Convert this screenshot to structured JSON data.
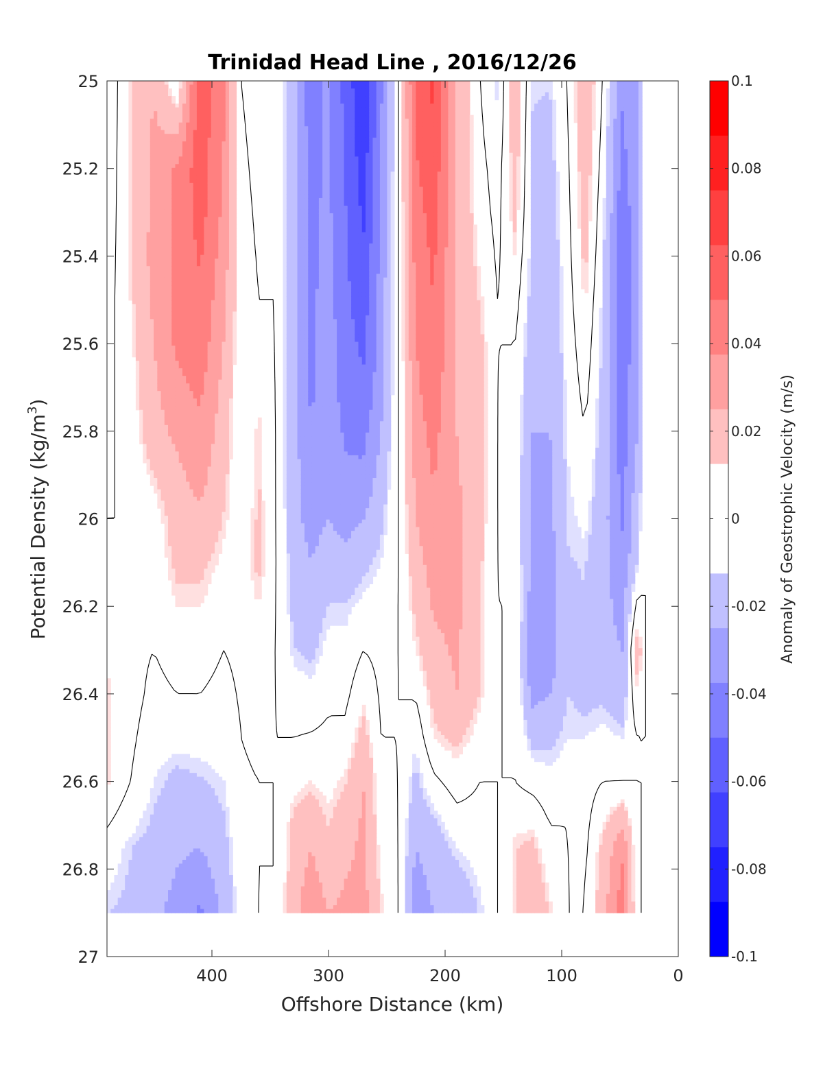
{
  "chart_data": {
    "type": "contour",
    "title": "Trinidad Head Line , 2016/12/26",
    "xlabel": "Offshore Distance (km)",
    "ylabel_main": "Potential Density (kg/m",
    "ylabel_sup": "3",
    "ylabel_close": ")",
    "xlim": [
      490,
      0
    ],
    "ylim": [
      25,
      27
    ],
    "x_reversed": true,
    "y_reversed": true,
    "x_ticks": [
      400,
      300,
      200,
      100,
      0
    ],
    "y_ticks": [
      25,
      25.2,
      25.4,
      25.6,
      25.8,
      26,
      26.2,
      26.4,
      26.6,
      26.8,
      27
    ],
    "y_tick_labels": [
      "25",
      "25.2",
      "25.4",
      "25.6",
      "25.8",
      "26",
      "26.2",
      "26.4",
      "26.6",
      "26.8",
      "27"
    ],
    "colorbar": {
      "label": "Anomaly of Geostrophic Velocity (m/s)",
      "range": [
        -0.1,
        0.1
      ],
      "ticks": [
        0.1,
        0.08,
        0.06,
        0.04,
        0.02,
        0,
        -0.02,
        -0.04,
        -0.06,
        -0.08,
        -0.1
      ],
      "tick_labels": [
        "0.1",
        "0.08",
        "0.06",
        "0.04",
        "0.02",
        "0",
        "-0.02",
        "-0.04",
        "-0.06",
        "-0.08",
        "-0.1"
      ],
      "levels": 16,
      "colors": [
        "#0000ff",
        "#2020ff",
        "#4040ff",
        "#6060ff",
        "#8080ff",
        "#a0a0ff",
        "#c0c0ff",
        "#e0e0ff",
        "#ffffff",
        "#ffe0e0",
        "#ffc0c0",
        "#ffa0a0",
        "#ff8080",
        "#ff6060",
        "#ff4040",
        "#ff2020",
        "#ff0000"
      ]
    },
    "data_max_density": 26.9,
    "columns": [
      {
        "x": 490,
        "values": [
          [
            25.0,
            -0.01
          ],
          [
            25.5,
            -0.005
          ],
          [
            26.0,
            0.0
          ],
          [
            26.3,
            0.01
          ],
          [
            26.6,
            0.012
          ],
          [
            26.75,
            -0.005
          ],
          [
            26.9,
            -0.012
          ]
        ]
      },
      {
        "x": 470,
        "values": [
          [
            25.0,
            0.012
          ],
          [
            25.5,
            0.01
          ],
          [
            26.0,
            0.0
          ],
          [
            26.4,
            0.005
          ],
          [
            26.6,
            0.0
          ],
          [
            26.75,
            -0.012
          ],
          [
            26.9,
            -0.015
          ]
        ]
      },
      {
        "x": 450,
        "values": [
          [
            25.0,
            0.025
          ],
          [
            25.4,
            0.03
          ],
          [
            25.8,
            0.02
          ],
          [
            26.0,
            0.005
          ],
          [
            26.3,
            0.0
          ],
          [
            26.6,
            -0.01
          ],
          [
            26.9,
            -0.022
          ]
        ]
      },
      {
        "x": 430,
        "values": [
          [
            25.0,
            0.0
          ],
          [
            25.2,
            0.04
          ],
          [
            25.6,
            0.04
          ],
          [
            25.9,
            0.022
          ],
          [
            26.1,
            0.015
          ],
          [
            26.4,
            0.0
          ],
          [
            26.6,
            -0.015
          ],
          [
            26.9,
            -0.03
          ]
        ]
      },
      {
        "x": 410,
        "values": [
          [
            25.0,
            0.06
          ],
          [
            25.3,
            0.055
          ],
          [
            25.6,
            0.045
          ],
          [
            25.9,
            0.03
          ],
          [
            26.1,
            0.015
          ],
          [
            26.4,
            0.0
          ],
          [
            26.7,
            -0.02
          ],
          [
            26.9,
            -0.04
          ]
        ]
      },
      {
        "x": 390,
        "values": [
          [
            25.0,
            0.04
          ],
          [
            25.3,
            0.035
          ],
          [
            25.6,
            0.025
          ],
          [
            26.0,
            0.012
          ],
          [
            26.3,
            0.0
          ],
          [
            26.6,
            -0.01
          ],
          [
            26.9,
            -0.022
          ]
        ]
      },
      {
        "x": 375,
        "values": [
          [
            25.0,
            0.0
          ],
          [
            25.4,
            0.005
          ],
          [
            25.8,
            0.0
          ],
          [
            26.1,
            0.005
          ],
          [
            26.5,
            0.0
          ],
          [
            26.9,
            -0.005
          ]
        ]
      },
      {
        "x": 360,
        "values": [
          [
            25.0,
            -0.005
          ],
          [
            25.5,
            0.0
          ],
          [
            25.8,
            0.012
          ],
          [
            26.1,
            0.015
          ],
          [
            26.3,
            0.005
          ],
          [
            26.6,
            0.0
          ],
          [
            26.9,
            0.0
          ]
        ]
      },
      {
        "x": 345,
        "values": [
          [
            25.0,
            0.0
          ],
          [
            25.5,
            0.0
          ],
          [
            26.0,
            0.0
          ],
          [
            26.5,
            0.0
          ],
          [
            26.8,
            0.0
          ],
          [
            26.9,
            0.005
          ]
        ]
      },
      {
        "x": 330,
        "values": [
          [
            25.0,
            -0.022
          ],
          [
            25.5,
            -0.022
          ],
          [
            26.0,
            -0.02
          ],
          [
            26.3,
            -0.012
          ],
          [
            26.5,
            0.0
          ],
          [
            26.7,
            0.015
          ],
          [
            26.9,
            0.02
          ]
        ]
      },
      {
        "x": 315,
        "values": [
          [
            25.0,
            -0.045
          ],
          [
            25.3,
            -0.04
          ],
          [
            25.7,
            -0.04
          ],
          [
            26.0,
            -0.03
          ],
          [
            26.3,
            -0.015
          ],
          [
            26.55,
            0.005
          ],
          [
            26.75,
            0.025
          ],
          [
            26.9,
            0.035
          ]
        ]
      },
      {
        "x": 300,
        "values": [
          [
            25.0,
            -0.035
          ],
          [
            25.3,
            -0.035
          ],
          [
            25.7,
            -0.03
          ],
          [
            26.0,
            -0.025
          ],
          [
            26.2,
            -0.012
          ],
          [
            26.45,
            0.0
          ],
          [
            26.7,
            0.012
          ],
          [
            26.9,
            0.025
          ]
        ]
      },
      {
        "x": 285,
        "values": [
          [
            25.0,
            -0.055
          ],
          [
            25.3,
            -0.05
          ],
          [
            25.7,
            -0.045
          ],
          [
            26.0,
            -0.03
          ],
          [
            26.2,
            -0.012
          ],
          [
            26.45,
            0.0
          ],
          [
            26.7,
            0.02
          ],
          [
            26.9,
            0.028
          ]
        ]
      },
      {
        "x": 270,
        "values": [
          [
            25.0,
            -0.075
          ],
          [
            25.3,
            -0.065
          ],
          [
            25.7,
            -0.048
          ],
          [
            25.9,
            -0.035
          ],
          [
            26.1,
            -0.015
          ],
          [
            26.3,
            0.0
          ],
          [
            26.6,
            0.025
          ],
          [
            26.9,
            0.03
          ]
        ]
      },
      {
        "x": 255,
        "values": [
          [
            25.0,
            -0.04
          ],
          [
            25.3,
            -0.035
          ],
          [
            25.7,
            -0.03
          ],
          [
            26.0,
            -0.015
          ],
          [
            26.2,
            -0.005
          ],
          [
            26.5,
            0.0
          ],
          [
            26.7,
            0.005
          ],
          [
            26.9,
            0.012
          ]
        ]
      },
      {
        "x": 240,
        "values": [
          [
            25.0,
            0.0
          ],
          [
            25.5,
            0.0
          ],
          [
            26.0,
            0.0
          ],
          [
            26.5,
            0.0
          ],
          [
            26.9,
            0.0
          ]
        ]
      },
      {
        "x": 225,
        "values": [
          [
            25.0,
            0.055
          ],
          [
            25.3,
            0.045
          ],
          [
            25.7,
            0.035
          ],
          [
            26.0,
            0.025
          ],
          [
            26.3,
            0.01
          ],
          [
            26.55,
            -0.012
          ],
          [
            26.75,
            -0.025
          ],
          [
            26.9,
            -0.035
          ]
        ]
      },
      {
        "x": 210,
        "values": [
          [
            25.0,
            0.065
          ],
          [
            25.3,
            0.055
          ],
          [
            25.7,
            0.045
          ],
          [
            26.0,
            0.035
          ],
          [
            26.3,
            0.022
          ],
          [
            26.5,
            0.01
          ],
          [
            26.7,
            -0.015
          ],
          [
            26.9,
            -0.025
          ]
        ]
      },
      {
        "x": 190,
        "values": [
          [
            25.0,
            0.025
          ],
          [
            25.5,
            0.025
          ],
          [
            25.8,
            0.025
          ],
          [
            26.1,
            0.03
          ],
          [
            26.4,
            0.025
          ],
          [
            26.6,
            0.005
          ],
          [
            26.75,
            -0.01
          ],
          [
            26.9,
            -0.022
          ]
        ]
      },
      {
        "x": 170,
        "values": [
          [
            25.0,
            0.0
          ],
          [
            25.3,
            0.005
          ],
          [
            25.6,
            0.015
          ],
          [
            26.0,
            0.015
          ],
          [
            26.4,
            0.012
          ],
          [
            26.6,
            0.0
          ],
          [
            26.9,
            -0.012
          ]
        ]
      },
      {
        "x": 155,
        "values": [
          [
            25.0,
            -0.012
          ],
          [
            25.2,
            -0.005
          ],
          [
            25.5,
            0.0
          ],
          [
            26.0,
            0.0
          ],
          [
            26.5,
            0.0
          ],
          [
            26.9,
            0.0
          ]
        ]
      },
      {
        "x": 140,
        "values": [
          [
            25.0,
            0.022
          ],
          [
            25.3,
            0.015
          ],
          [
            25.6,
            0.0
          ],
          [
            25.9,
            -0.005
          ],
          [
            26.2,
            0.0
          ],
          [
            26.6,
            0.0
          ],
          [
            26.75,
            0.012
          ],
          [
            26.9,
            0.012
          ]
        ]
      },
      {
        "x": 125,
        "values": [
          [
            25.0,
            -0.012
          ],
          [
            25.4,
            -0.015
          ],
          [
            25.8,
            -0.025
          ],
          [
            26.1,
            -0.03
          ],
          [
            26.35,
            -0.035
          ],
          [
            26.55,
            -0.01
          ],
          [
            26.75,
            0.015
          ],
          [
            26.9,
            0.025
          ]
        ]
      },
      {
        "x": 110,
        "values": [
          [
            25.0,
            -0.012
          ],
          [
            25.4,
            -0.02
          ],
          [
            25.8,
            -0.025
          ],
          [
            26.1,
            -0.03
          ],
          [
            26.35,
            -0.03
          ],
          [
            26.5,
            -0.015
          ],
          [
            26.7,
            0.0
          ],
          [
            26.9,
            0.012
          ]
        ]
      },
      {
        "x": 95,
        "values": [
          [
            25.0,
            0.0
          ],
          [
            25.5,
            -0.005
          ],
          [
            26.0,
            -0.012
          ],
          [
            26.3,
            -0.015
          ],
          [
            26.5,
            -0.01
          ],
          [
            26.7,
            0.0
          ],
          [
            26.9,
            0.0
          ]
        ]
      },
      {
        "x": 80,
        "values": [
          [
            25.0,
            0.025
          ],
          [
            25.4,
            0.015
          ],
          [
            25.8,
            0.0
          ],
          [
            26.1,
            -0.012
          ],
          [
            26.4,
            -0.015
          ],
          [
            26.6,
            -0.005
          ],
          [
            26.9,
            0.0
          ]
        ]
      },
      {
        "x": 65,
        "values": [
          [
            25.0,
            0.0
          ],
          [
            25.5,
            -0.012
          ],
          [
            26.0,
            -0.02
          ],
          [
            26.3,
            -0.02
          ],
          [
            26.55,
            -0.005
          ],
          [
            26.75,
            0.015
          ],
          [
            26.9,
            0.02
          ]
        ]
      },
      {
        "x": 48,
        "values": [
          [
            25.0,
            -0.035
          ],
          [
            25.4,
            -0.05
          ],
          [
            25.8,
            -0.045
          ],
          [
            26.1,
            -0.035
          ],
          [
            26.4,
            -0.02
          ],
          [
            26.6,
            0.0
          ],
          [
            26.75,
            0.035
          ],
          [
            26.9,
            0.045
          ]
        ]
      },
      {
        "x": 35,
        "values": [
          [
            25.0,
            -0.025
          ],
          [
            25.4,
            -0.03
          ],
          [
            25.8,
            -0.025
          ],
          [
            26.1,
            -0.012
          ],
          [
            26.3,
            0.02
          ],
          [
            26.5,
            0.0
          ],
          [
            26.9,
            0.0
          ]
        ]
      },
      {
        "x": 28,
        "values": [
          [
            25.0,
            0.0
          ],
          [
            25.5,
            0.0
          ],
          [
            26.0,
            0.0
          ],
          [
            26.5,
            0.0
          ],
          [
            26.9,
            0.0
          ]
        ]
      }
    ]
  }
}
